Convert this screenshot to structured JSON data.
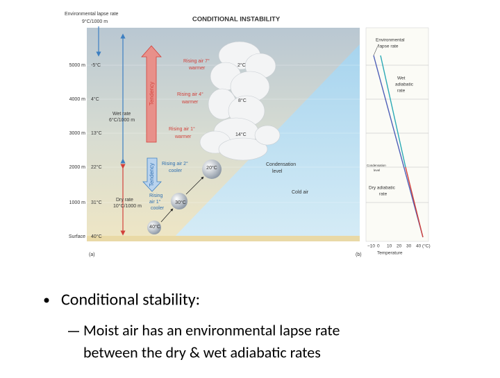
{
  "figure": {
    "title": "CONDITIONAL INSTABILITY",
    "env_label": [
      "Environmental lapse rate",
      "9°C/1000 m"
    ],
    "altitudes": [
      "5000 m",
      "4000 m",
      "3000 m",
      "2000 m",
      "1000 m",
      "Surface"
    ],
    "env_temps": [
      "-5°C",
      "4°C",
      "13°C",
      "22°C",
      "31°C",
      "40°C"
    ],
    "wet_rate": [
      "Wet rate",
      "6°C/1000 m"
    ],
    "dry_rate": [
      "Dry rate",
      "10°C/1000 m"
    ],
    "tendency": [
      "Tendency",
      "Tendency"
    ],
    "rising_7": [
      "Rising air 7°",
      "warmer"
    ],
    "rising_4": [
      "Rising air 4°",
      "warmer"
    ],
    "rising_1w": [
      "Rising air 1°",
      "warmer"
    ],
    "rising_2": [
      "Rising air 2°",
      "cooler"
    ],
    "rising_1c": [
      "Rising",
      "air 1°",
      "cooler"
    ],
    "parcel_temps": [
      "2°C",
      "8°C",
      "14°C",
      "20°C",
      "30°C",
      "40°C"
    ],
    "condensation": [
      "Condensation",
      "level"
    ],
    "cold_air": "Cold air",
    "panel_a": "(a)",
    "panel_b": "(b)",
    "b_env": [
      "Environmental",
      "lapse rate"
    ],
    "b_wet": [
      "Wet",
      "adiabatic",
      "rate"
    ],
    "b_cond": [
      "Condensation",
      "level"
    ],
    "b_dry": [
      "Dry adiabatic",
      "rate"
    ],
    "b_xticks": [
      "−10",
      "0",
      "10",
      "20",
      "30",
      "40 (°C)"
    ],
    "b_xlabel": "Temperature"
  },
  "bullets": [
    {
      "text": "Conditional stability:",
      "sub": [
        "Moist air has an environmental lapse rate",
        "between the dry & wet adiabatic rates"
      ]
    }
  ]
}
